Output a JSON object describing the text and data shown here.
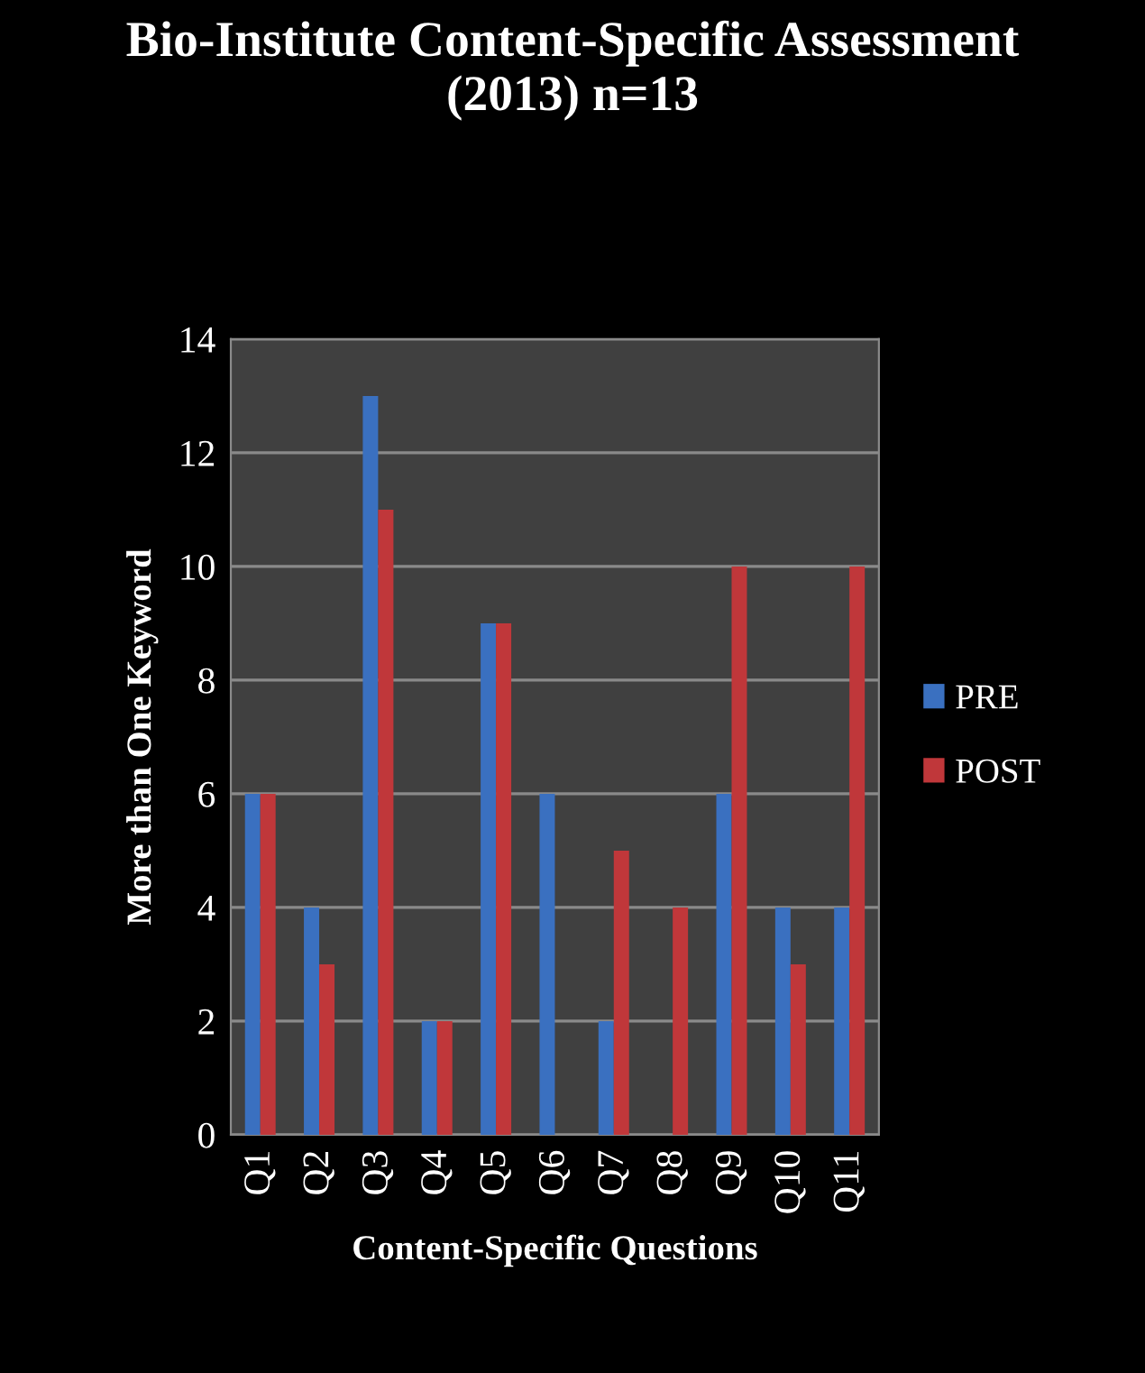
{
  "chart_data": {
    "type": "bar",
    "title": "Bio-Institute Content-Specific Assessment\n(2013) n=13",
    "xlabel": "Content-Specific Questions",
    "ylabel": "More than One Keyword",
    "categories": [
      "Q1",
      "Q2",
      "Q3",
      "Q4",
      "Q5",
      "Q6",
      "Q7",
      "Q8",
      "Q9",
      "Q10",
      "Q11"
    ],
    "series": [
      {
        "name": "PRE",
        "color": "#3a70c0",
        "values": [
          6,
          4,
          13,
          2,
          9,
          6,
          2,
          0,
          6,
          4,
          4
        ]
      },
      {
        "name": "POST",
        "color": "#c0373a",
        "values": [
          6,
          3,
          11,
          2,
          9,
          0,
          5,
          4,
          10,
          3,
          10
        ]
      }
    ],
    "ylim": [
      0,
      14
    ],
    "yticks": [
      0,
      2,
      4,
      6,
      8,
      10,
      12,
      14
    ],
    "grid": "y",
    "legend": "right"
  }
}
